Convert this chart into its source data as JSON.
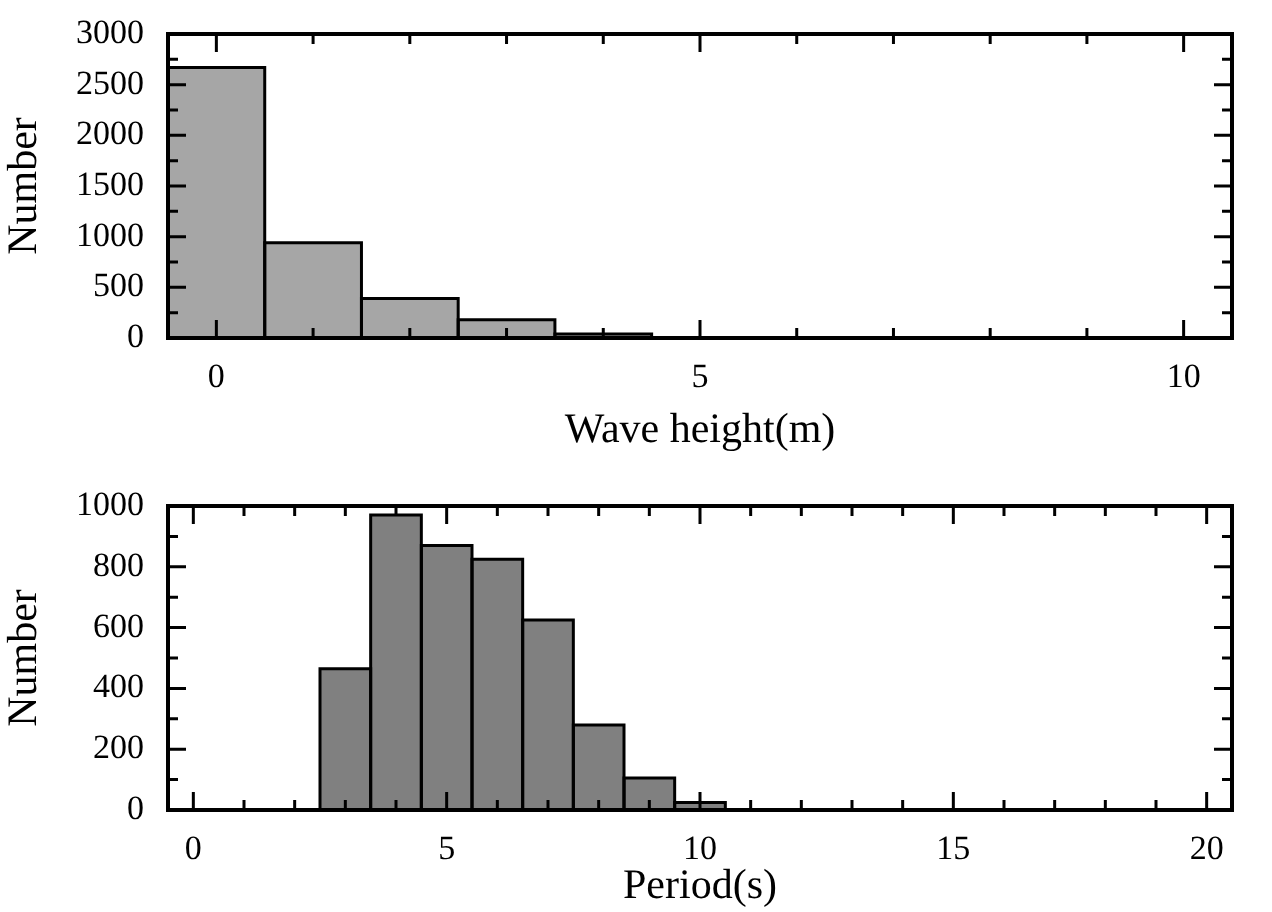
{
  "chart_data": [
    {
      "type": "histogram",
      "xlabel": "Wave height(m)",
      "ylabel": "Number",
      "color": "#a6a6a6",
      "bins": [
        -0.5,
        0.5,
        1.5,
        2.5,
        3.5,
        4.5
      ],
      "values": [
        2670,
        940,
        390,
        180,
        40
      ],
      "xlim": [
        -0.5,
        10.5
      ],
      "xticks": [
        0,
        {
          "value": 1,
          "label": null
        },
        {
          "value": 2,
          "label": null
        },
        {
          "value": 3,
          "label": null
        },
        {
          "value": 4,
          "label": null
        },
        5,
        {
          "value": 6,
          "label": null
        },
        {
          "value": 7,
          "label": null
        },
        {
          "value": 8,
          "label": null
        },
        {
          "value": 9,
          "label": null
        },
        10
      ],
      "ylim": [
        0,
        3000
      ],
      "yticks": [
        0,
        {
          "value": 250,
          "label": null
        },
        500,
        {
          "value": 750,
          "label": null
        },
        1000,
        {
          "value": 1250,
          "label": null
        },
        1500,
        {
          "value": 1750,
          "label": null
        },
        2000,
        {
          "value": 2250,
          "label": null
        },
        2500,
        {
          "value": 2750,
          "label": null
        },
        3000
      ],
      "grid": false
    },
    {
      "type": "histogram",
      "xlabel": "Period(s)",
      "ylabel": "Number",
      "color": "#808080",
      "bins": [
        2.5,
        3.5,
        4.5,
        5.5,
        6.5,
        7.5,
        8.5,
        9.5,
        10.5
      ],
      "values": [
        465,
        970,
        870,
        825,
        625,
        280,
        105,
        25
      ],
      "xlim": [
        -0.5,
        20.5
      ],
      "xticks": [
        0,
        {
          "value": 1,
          "label": null
        },
        {
          "value": 2,
          "label": null
        },
        {
          "value": 3,
          "label": null
        },
        {
          "value": 4,
          "label": null
        },
        5,
        {
          "value": 6,
          "label": null
        },
        {
          "value": 7,
          "label": null
        },
        {
          "value": 8,
          "label": null
        },
        {
          "value": 9,
          "label": null
        },
        10,
        {
          "value": 11,
          "label": null
        },
        {
          "value": 12,
          "label": null
        },
        {
          "value": 13,
          "label": null
        },
        {
          "value": 14,
          "label": null
        },
        15,
        {
          "value": 16,
          "label": null
        },
        {
          "value": 17,
          "label": null
        },
        {
          "value": 18,
          "label": null
        },
        {
          "value": 19,
          "label": null
        },
        20
      ],
      "ylim": [
        0,
        1000
      ],
      "yticks": [
        0,
        {
          "value": 100,
          "label": null
        },
        200,
        {
          "value": 300,
          "label": null
        },
        400,
        {
          "value": 500,
          "label": null
        },
        600,
        {
          "value": 700,
          "label": null
        },
        800,
        {
          "value": 900,
          "label": null
        },
        1000
      ],
      "grid": false
    }
  ]
}
